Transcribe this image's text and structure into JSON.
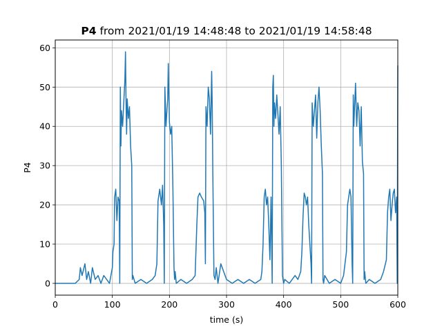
{
  "chart_data": {
    "type": "line",
    "title_bold": "P4",
    "title_rest": " from 2021/01/19 14:48:48 to 2021/01/19 14:58:48",
    "xlabel": "time (s)",
    "ylabel": "P4",
    "xlim": [
      0,
      600
    ],
    "ylim": [
      -3,
      62
    ],
    "xticks": [
      0,
      100,
      200,
      300,
      400,
      500,
      600
    ],
    "yticks": [
      0,
      10,
      20,
      30,
      40,
      50,
      60
    ],
    "grid": true,
    "series": [
      {
        "color": "#1f77b4",
        "x": [
          0,
          35,
          42,
          44,
          47,
          52,
          55,
          58,
          62,
          65,
          70,
          75,
          80,
          85,
          90,
          95,
          100,
          101,
          103,
          104,
          106,
          108,
          110,
          112,
          113,
          114,
          115,
          116,
          118,
          120,
          122,
          123,
          124,
          125,
          126,
          128,
          130,
          132,
          134,
          135,
          136,
          140,
          150,
          160,
          170,
          175,
          178,
          180,
          183,
          186,
          188,
          190,
          191,
          192,
          194,
          196,
          197,
          198,
          200,
          202,
          204,
          206,
          208,
          209,
          210,
          212,
          220,
          230,
          240,
          245,
          248,
          250,
          253,
          256,
          260,
          262,
          263,
          264,
          266,
          268,
          270,
          272,
          274,
          275,
          276,
          278,
          280,
          282,
          285,
          290,
          300,
          310,
          320,
          330,
          340,
          350,
          360,
          362,
          364,
          366,
          368,
          370,
          372,
          374,
          376,
          378,
          380,
          381,
          382,
          383,
          384,
          386,
          388,
          390,
          392,
          394,
          396,
          398,
          399,
          400,
          402,
          410,
          420,
          425,
          430,
          432,
          434,
          436,
          438,
          440,
          442,
          444,
          446,
          448,
          449,
          450,
          452,
          454,
          456,
          458,
          460,
          462,
          464,
          466,
          468,
          469,
          470,
          472,
          480,
          490,
          500,
          505,
          510,
          512,
          514,
          516,
          518,
          520,
          521,
          522,
          523,
          524,
          526,
          528,
          530,
          532,
          534,
          536,
          538,
          540,
          541,
          542,
          544,
          550,
          560,
          570,
          575,
          580,
          582,
          584,
          586,
          588,
          590,
          592,
          594,
          596,
          598,
          599,
          600
        ],
        "y": [
          0,
          0,
          1,
          4,
          2,
          5,
          1,
          3,
          0,
          4,
          1,
          2,
          0,
          2,
          1,
          0,
          4,
          8,
          10,
          22,
          24,
          16,
          22,
          21,
          0,
          50,
          35,
          44,
          40,
          46,
          52,
          59,
          46,
          38,
          47,
          42,
          45,
          35,
          30,
          1,
          2,
          0,
          1,
          0,
          1,
          2,
          5,
          21,
          24,
          20,
          25,
          15,
          0,
          50,
          40,
          45,
          47,
          56,
          41,
          38,
          40,
          25,
          4,
          1,
          3,
          0,
          1,
          0,
          1,
          2,
          15,
          22,
          23,
          22,
          21,
          18,
          5,
          45,
          40,
          50,
          47,
          38,
          54,
          45,
          28,
          2,
          1,
          4,
          0,
          5,
          1,
          0,
          1,
          0,
          1,
          0,
          1,
          3,
          10,
          22,
          24,
          20,
          22,
          15,
          6,
          22,
          0,
          50,
          53,
          40,
          46,
          42,
          48,
          43,
          38,
          45,
          30,
          2,
          1,
          0,
          1,
          0,
          2,
          1,
          3,
          8,
          17,
          23,
          22,
          20,
          22,
          15,
          10,
          5,
          0,
          46,
          40,
          44,
          48,
          37,
          46,
          50,
          44,
          35,
          28,
          1,
          0,
          2,
          0,
          1,
          0,
          2,
          8,
          20,
          22,
          24,
          22,
          5,
          0,
          48,
          40,
          44,
          51,
          40,
          46,
          44,
          35,
          45,
          31,
          28,
          1,
          3,
          0,
          1,
          0,
          1,
          3,
          6,
          18,
          22,
          24,
          16,
          20,
          23,
          24,
          18,
          22,
          0,
          55.5
        ]
      }
    ]
  }
}
